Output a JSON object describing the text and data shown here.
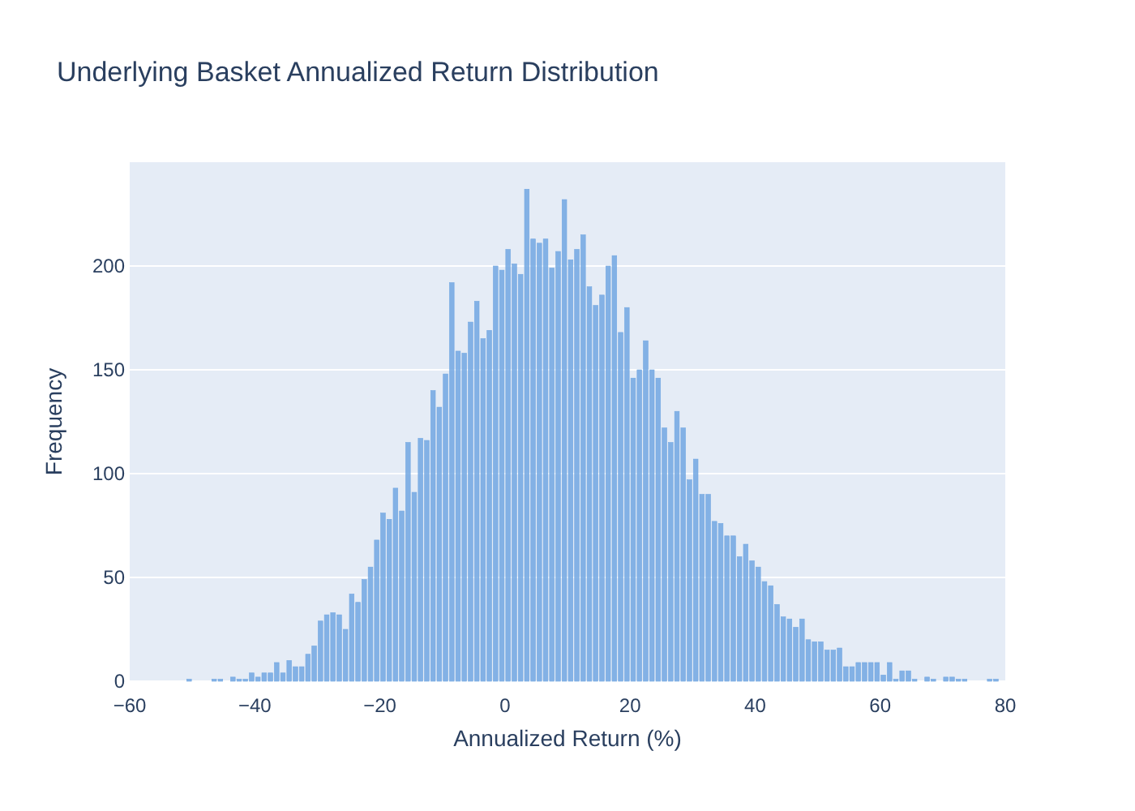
{
  "chart_data": {
    "type": "histogram",
    "title": "Underlying Basket Annualized Return Distribution",
    "xlabel": "Annualized Return (%)",
    "ylabel": "Frequency",
    "color": "#72a7e2",
    "bins": [
      -52,
      -51,
      -50,
      -49,
      -48,
      -47,
      -46,
      -45,
      -44,
      -43,
      -42,
      -41,
      -40,
      -39,
      -38,
      -37,
      -36,
      -35,
      -34,
      -33,
      -32,
      -31,
      -30,
      -29,
      -28,
      -27,
      -26,
      -25,
      -24,
      -23,
      -22,
      -21,
      -20,
      -19,
      -18,
      -17,
      -16,
      -15,
      -14,
      -13,
      -12,
      -11,
      -10,
      -9,
      -8,
      -7,
      -6,
      -5,
      -4,
      -3,
      -2,
      -1,
      0,
      1,
      2,
      3,
      4,
      5,
      6,
      7,
      8,
      9,
      10,
      11,
      12,
      13,
      14,
      15,
      16,
      17,
      18,
      19,
      20,
      21,
      22,
      23,
      24,
      25,
      26,
      27,
      28,
      29,
      30,
      31,
      32,
      33,
      34,
      35,
      36,
      37,
      38,
      39,
      40,
      41,
      42,
      43,
      44,
      45,
      46,
      47,
      48,
      49,
      50,
      51,
      52,
      53,
      54,
      55,
      56,
      57,
      58,
      59,
      60,
      61,
      62,
      63,
      64,
      65,
      66,
      67,
      68,
      69,
      70,
      71,
      72,
      73,
      74,
      75,
      76,
      77,
      78,
      79
    ],
    "values": [
      0,
      1,
      0,
      0,
      0,
      1,
      1,
      0,
      2,
      1,
      1,
      4,
      2,
      4,
      4,
      9,
      4,
      10,
      7,
      7,
      13,
      17,
      29,
      32,
      33,
      32,
      25,
      42,
      38,
      49,
      55,
      68,
      81,
      78,
      93,
      82,
      115,
      91,
      117,
      116,
      140,
      132,
      148,
      192,
      159,
      158,
      173,
      183,
      165,
      169,
      200,
      198,
      208,
      201,
      196,
      237,
      213,
      211,
      213,
      199,
      207,
      232,
      203,
      208,
      215,
      190,
      181,
      186,
      200,
      205,
      168,
      180,
      146,
      150,
      164,
      150,
      146,
      122,
      115,
      130,
      122,
      97,
      107,
      90,
      90,
      77,
      76,
      70,
      70,
      60,
      66,
      58,
      55,
      48,
      46,
      37,
      31,
      30,
      26,
      30,
      20,
      19,
      19,
      15,
      15,
      16,
      7,
      7,
      9,
      9,
      9,
      9,
      3,
      9,
      1,
      5,
      5,
      1,
      0,
      2,
      1,
      0,
      2,
      2,
      1,
      1,
      0,
      0,
      0,
      1,
      1
    ],
    "xlim": [
      -60,
      80
    ],
    "xticks": [
      {
        "value": -60,
        "label": "−60"
      },
      {
        "value": -40,
        "label": "−40"
      },
      {
        "value": -20,
        "label": "−20"
      },
      0,
      20,
      40,
      60,
      80
    ],
    "ylim": [
      0,
      250
    ],
    "yticks": [
      0,
      50,
      100,
      150,
      200
    ],
    "grid": "y"
  }
}
